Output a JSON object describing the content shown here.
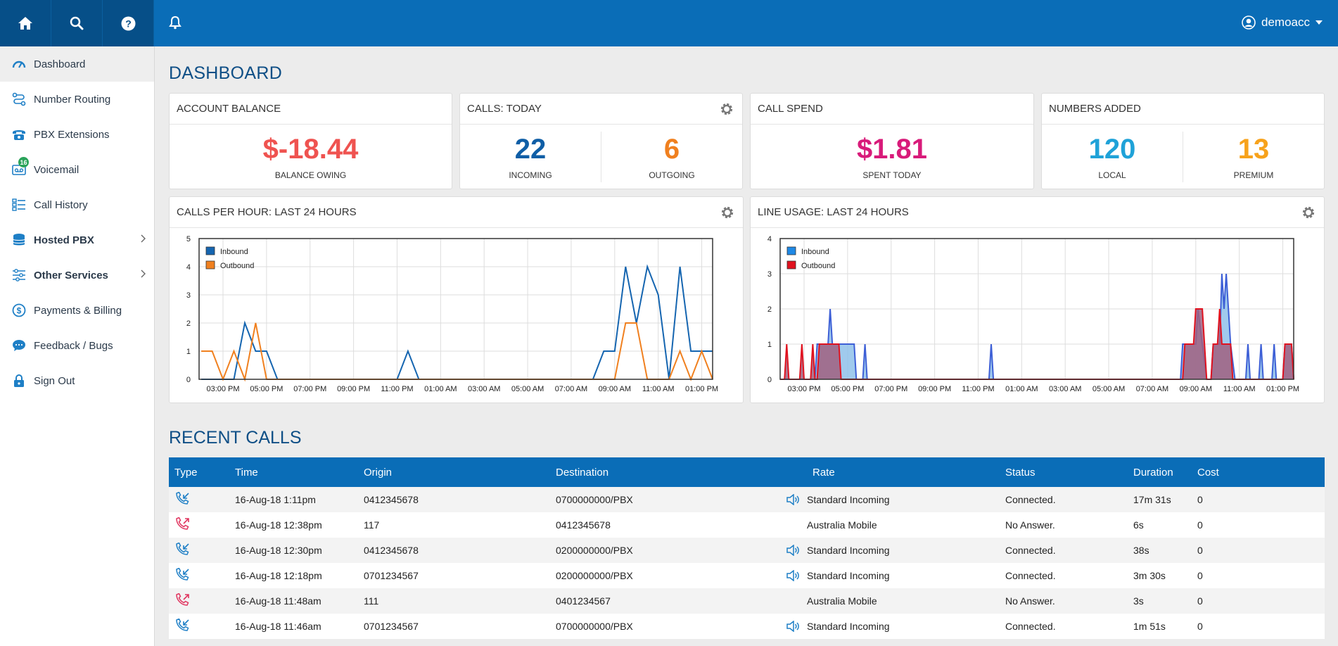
{
  "header": {
    "home_icon": "home-icon",
    "search_icon": "search-icon",
    "help_icon": "help-icon",
    "bell_icon": "bell-icon",
    "username": "demoacc"
  },
  "sidebar": {
    "items": [
      {
        "label": "Dashboard",
        "icon": "gauge-icon"
      },
      {
        "label": "Number Routing",
        "icon": "routing-icon"
      },
      {
        "label": "PBX Extensions",
        "icon": "phone-icon"
      },
      {
        "label": "Voicemail",
        "icon": "voicemail-icon",
        "badge": "16"
      },
      {
        "label": "Call History",
        "icon": "list-icon"
      },
      {
        "label": "Hosted PBX",
        "icon": "database-icon"
      },
      {
        "label": "Other Services",
        "icon": "sliders-icon"
      },
      {
        "label": "Payments & Billing",
        "icon": "dollar-icon"
      },
      {
        "label": "Feedback / Bugs",
        "icon": "chat-icon"
      },
      {
        "label": "Sign Out",
        "icon": "lock-icon"
      }
    ]
  },
  "page_title": "DASHBOARD",
  "cards": {
    "balance": {
      "title": "ACCOUNT BALANCE",
      "value": "$-18.44",
      "label": "BALANCE OWING"
    },
    "calls": {
      "title": "CALLS: TODAY",
      "incoming": "22",
      "incoming_label": "INCOMING",
      "outgoing": "6",
      "outgoing_label": "OUTGOING"
    },
    "spend": {
      "title": "CALL SPEND",
      "value": "$1.81",
      "label": "SPENT TODAY"
    },
    "numbers": {
      "title": "NUMBERS ADDED",
      "local": "120",
      "local_label": "LOCAL",
      "premium": "13",
      "premium_label": "PREMIUM"
    }
  },
  "colors": {
    "brand": "#0a6db7",
    "balance": "#ef5350",
    "incoming": "#0f5ea6",
    "outgoing": "#f0801f",
    "spend": "#d81b7a",
    "local": "#1fa2d8",
    "premium": "#f7a21b"
  },
  "chart_data": [
    {
      "title": "CALLS PER HOUR: LAST 24 HOURS",
      "type": "line",
      "ylim": [
        0,
        5
      ],
      "yticks": [
        0,
        1,
        2,
        3,
        4,
        5
      ],
      "xlabels": [
        "03:00 PM",
        "05:00 PM",
        "07:00 PM",
        "09:00 PM",
        "11:00 PM",
        "01:00 AM",
        "03:00 AM",
        "05:00 AM",
        "07:00 AM",
        "09:00 AM",
        "11:00 AM",
        "01:00 PM"
      ],
      "x_start": 1.9,
      "x_end": 25.5,
      "legend": "top-left",
      "series": [
        {
          "name": "Inbound",
          "color": "#1565b0",
          "points": [
            [
              2.0,
              0
            ],
            [
              3.5,
              0
            ],
            [
              4.0,
              2
            ],
            [
              4.5,
              1
            ],
            [
              5.0,
              1
            ],
            [
              5.5,
              0
            ],
            [
              11.0,
              0
            ],
            [
              11.5,
              1
            ],
            [
              12.0,
              0
            ],
            [
              20.0,
              0
            ],
            [
              20.5,
              1
            ],
            [
              21.0,
              1
            ],
            [
              21.5,
              4
            ],
            [
              22.0,
              2
            ],
            [
              22.5,
              4
            ],
            [
              23.0,
              3
            ],
            [
              23.5,
              0
            ],
            [
              24.0,
              4
            ],
            [
              24.5,
              1
            ],
            [
              25.5,
              1
            ]
          ]
        },
        {
          "name": "Outbound",
          "color": "#f0801f",
          "points": [
            [
              2.0,
              1
            ],
            [
              2.5,
              1
            ],
            [
              3.0,
              0
            ],
            [
              3.5,
              1
            ],
            [
              4.0,
              0
            ],
            [
              4.5,
              2
            ],
            [
              5.0,
              0
            ],
            [
              21.0,
              0
            ],
            [
              21.5,
              2
            ],
            [
              22.0,
              2
            ],
            [
              22.5,
              0
            ],
            [
              23.5,
              0
            ],
            [
              24.0,
              1
            ],
            [
              24.5,
              0
            ],
            [
              25.0,
              1
            ],
            [
              25.5,
              0
            ]
          ]
        }
      ]
    },
    {
      "title": "LINE USAGE: LAST 24 HOURS",
      "type": "area",
      "ylim": [
        0,
        4
      ],
      "yticks": [
        0,
        1,
        2,
        3,
        4
      ],
      "xlabels": [
        "03:00 PM",
        "05:00 PM",
        "07:00 PM",
        "09:00 PM",
        "11:00 PM",
        "01:00 AM",
        "03:00 AM",
        "05:00 AM",
        "07:00 AM",
        "09:00 AM",
        "11:00 AM",
        "01:00 PM"
      ],
      "x_start": 1.9,
      "x_end": 25.5,
      "legend": "top-left",
      "series": [
        {
          "name": "Inbound",
          "color": "#3d5fd6",
          "fill": "#8fc1ea",
          "points": [
            [
              1.9,
              0
            ],
            [
              3.5,
              0
            ],
            [
              3.6,
              1
            ],
            [
              4.1,
              1
            ],
            [
              4.2,
              2
            ],
            [
              4.3,
              1
            ],
            [
              5.3,
              1
            ],
            [
              5.4,
              0
            ],
            [
              5.7,
              0
            ],
            [
              5.8,
              1
            ],
            [
              5.9,
              0
            ],
            [
              11.5,
              0
            ],
            [
              11.6,
              1
            ],
            [
              11.7,
              0
            ],
            [
              20.3,
              0
            ],
            [
              20.4,
              1
            ],
            [
              21.0,
              1
            ],
            [
              21.1,
              2
            ],
            [
              21.3,
              1
            ],
            [
              21.5,
              0
            ],
            [
              21.7,
              0
            ],
            [
              21.8,
              1
            ],
            [
              22.1,
              1
            ],
            [
              22.2,
              3
            ],
            [
              22.3,
              2
            ],
            [
              22.4,
              3
            ],
            [
              22.5,
              2
            ],
            [
              22.6,
              1
            ],
            [
              22.8,
              0
            ],
            [
              23.3,
              0
            ],
            [
              23.4,
              1
            ],
            [
              23.5,
              0
            ],
            [
              23.9,
              0
            ],
            [
              24.0,
              1
            ],
            [
              24.1,
              0
            ],
            [
              24.5,
              0
            ],
            [
              24.6,
              1
            ],
            [
              24.7,
              0
            ],
            [
              25.0,
              0
            ],
            [
              25.1,
              1
            ],
            [
              25.4,
              1
            ],
            [
              25.5,
              0
            ]
          ]
        },
        {
          "name": "Outbound",
          "color": "#e0121f",
          "fill": "#a0607f",
          "points": [
            [
              1.9,
              0
            ],
            [
              2.1,
              0
            ],
            [
              2.2,
              1
            ],
            [
              2.3,
              0
            ],
            [
              2.8,
              0
            ],
            [
              2.9,
              1
            ],
            [
              3.0,
              0
            ],
            [
              3.3,
              0
            ],
            [
              3.4,
              1
            ],
            [
              3.5,
              0
            ],
            [
              3.6,
              0
            ],
            [
              3.7,
              1
            ],
            [
              4.6,
              1
            ],
            [
              4.7,
              0
            ],
            [
              20.4,
              0
            ],
            [
              20.5,
              1
            ],
            [
              20.9,
              1
            ],
            [
              21.0,
              2
            ],
            [
              21.3,
              2
            ],
            [
              21.4,
              1
            ],
            [
              21.5,
              0
            ],
            [
              21.7,
              0
            ],
            [
              21.8,
              1
            ],
            [
              22.0,
              1
            ],
            [
              22.1,
              2
            ],
            [
              22.2,
              1
            ],
            [
              22.6,
              1
            ],
            [
              22.7,
              0
            ],
            [
              25.0,
              0
            ],
            [
              25.1,
              1
            ],
            [
              25.4,
              1
            ],
            [
              25.5,
              0
            ]
          ]
        }
      ]
    }
  ],
  "recent_calls": {
    "title": "RECENT CALLS",
    "columns": [
      "Type",
      "Time",
      "Origin",
      "Destination",
      "Rate",
      "Status",
      "Duration",
      "Cost"
    ],
    "rows": [
      {
        "type": "incoming",
        "time": "16-Aug-18 1:11pm",
        "origin": "0412345678",
        "destination": "0700000000/PBX",
        "rate": "Standard Incoming",
        "speaker": true,
        "status": "Connected.",
        "duration": "17m 31s",
        "cost": "0"
      },
      {
        "type": "outgoing",
        "time": "16-Aug-18 12:38pm",
        "origin": "117",
        "destination": "0412345678",
        "rate": "Australia Mobile",
        "speaker": false,
        "status": "No Answer.",
        "duration": "6s",
        "cost": "0"
      },
      {
        "type": "incoming",
        "time": "16-Aug-18 12:30pm",
        "origin": "0412345678",
        "destination": "0200000000/PBX",
        "rate": "Standard Incoming",
        "speaker": true,
        "status": "Connected.",
        "duration": "38s",
        "cost": "0"
      },
      {
        "type": "incoming",
        "time": "16-Aug-18 12:18pm",
        "origin": "0701234567",
        "destination": "0200000000/PBX",
        "rate": "Standard Incoming",
        "speaker": true,
        "status": "Connected.",
        "duration": "3m 30s",
        "cost": "0"
      },
      {
        "type": "outgoing",
        "time": "16-Aug-18 11:48am",
        "origin": "111",
        "destination": "0401234567",
        "rate": "Australia Mobile",
        "speaker": false,
        "status": "No Answer.",
        "duration": "3s",
        "cost": "0"
      },
      {
        "type": "incoming",
        "time": "16-Aug-18 11:46am",
        "origin": "0701234567",
        "destination": "0700000000/PBX",
        "rate": "Standard Incoming",
        "speaker": true,
        "status": "Connected.",
        "duration": "1m 51s",
        "cost": "0"
      }
    ]
  }
}
